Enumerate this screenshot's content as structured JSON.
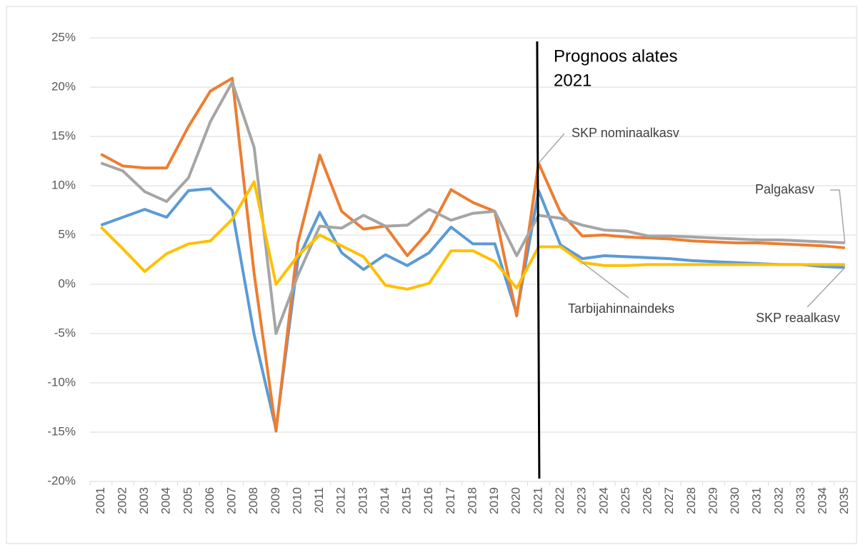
{
  "chart_data": {
    "type": "line",
    "annotation": [
      "Prognoos alates",
      "2021"
    ],
    "categories": [
      "2001",
      "2002",
      "2003",
      "2004",
      "2005",
      "2006",
      "2007",
      "2008",
      "2009",
      "2010",
      "2011",
      "2012",
      "2013",
      "2014",
      "2015",
      "2016",
      "2017",
      "2018",
      "2019",
      "2020",
      "2021",
      "2022",
      "2023",
      "2024",
      "2025",
      "2026",
      "2027",
      "2028",
      "2029",
      "2030",
      "2031",
      "2032",
      "2033",
      "2034",
      "2035"
    ],
    "series": [
      {
        "name": "SKP reaalkasv",
        "color": "#5b9bd5",
        "values": [
          6.0,
          6.8,
          7.6,
          6.8,
          9.5,
          9.7,
          7.5,
          -5.1,
          -14.7,
          2.5,
          7.3,
          3.2,
          1.5,
          3.0,
          1.9,
          3.2,
          5.8,
          4.1,
          4.1,
          -3.0,
          9.5,
          4.0,
          2.6,
          2.9,
          2.8,
          2.7,
          2.6,
          2.4,
          2.3,
          2.2,
          2.1,
          2.0,
          2.0,
          1.8,
          1.7
        ]
      },
      {
        "name": "SKP nominaalkasv",
        "color": "#ed7d31",
        "values": [
          13.2,
          12.0,
          11.8,
          11.8,
          16.0,
          19.6,
          20.9,
          1.1,
          -14.9,
          4.2,
          13.1,
          7.4,
          5.6,
          5.9,
          2.9,
          5.4,
          9.6,
          8.3,
          7.4,
          -3.2,
          12.3,
          7.3,
          4.9,
          5.0,
          4.8,
          4.7,
          4.6,
          4.4,
          4.3,
          4.2,
          4.2,
          4.1,
          4.0,
          3.9,
          3.7
        ]
      },
      {
        "name": "Palgakasv",
        "color": "#a5a5a5",
        "values": [
          12.3,
          11.5,
          9.4,
          8.4,
          10.8,
          16.5,
          20.5,
          13.9,
          -5.0,
          0.9,
          5.9,
          5.7,
          7.0,
          5.9,
          6.0,
          7.6,
          6.5,
          7.2,
          7.4,
          2.9,
          7.0,
          6.7,
          6.0,
          5.5,
          5.4,
          4.9,
          4.9,
          4.8,
          4.7,
          4.6,
          4.5,
          4.5,
          4.4,
          4.3,
          4.2
        ]
      },
      {
        "name": "Tarbijahinnaindeks",
        "color": "#ffc000",
        "values": [
          5.8,
          3.6,
          1.3,
          3.1,
          4.1,
          4.4,
          6.6,
          10.4,
          0.0,
          2.9,
          5.0,
          3.9,
          2.8,
          -0.1,
          -0.5,
          0.1,
          3.4,
          3.4,
          2.3,
          -0.4,
          3.8,
          3.8,
          2.2,
          1.9,
          1.9,
          2.0,
          2.0,
          2.0,
          2.0,
          2.0,
          2.0,
          2.0,
          2.0,
          2.0,
          2.0
        ]
      }
    ],
    "ylim": [
      -20,
      25
    ],
    "yticks": [
      {
        "value": -20,
        "label": "-20%"
      },
      {
        "value": -15,
        "label": "-15%"
      },
      {
        "value": -10,
        "label": "-10%"
      },
      {
        "value": -5,
        "label": "-5%"
      },
      {
        "value": 0,
        "label": "0%"
      },
      {
        "value": 5,
        "label": "5%"
      },
      {
        "value": 10,
        "label": "10%"
      },
      {
        "value": 15,
        "label": "15%"
      },
      {
        "value": 20,
        "label": "20%"
      },
      {
        "value": 25,
        "label": "25%"
      }
    ],
    "grid": true
  }
}
